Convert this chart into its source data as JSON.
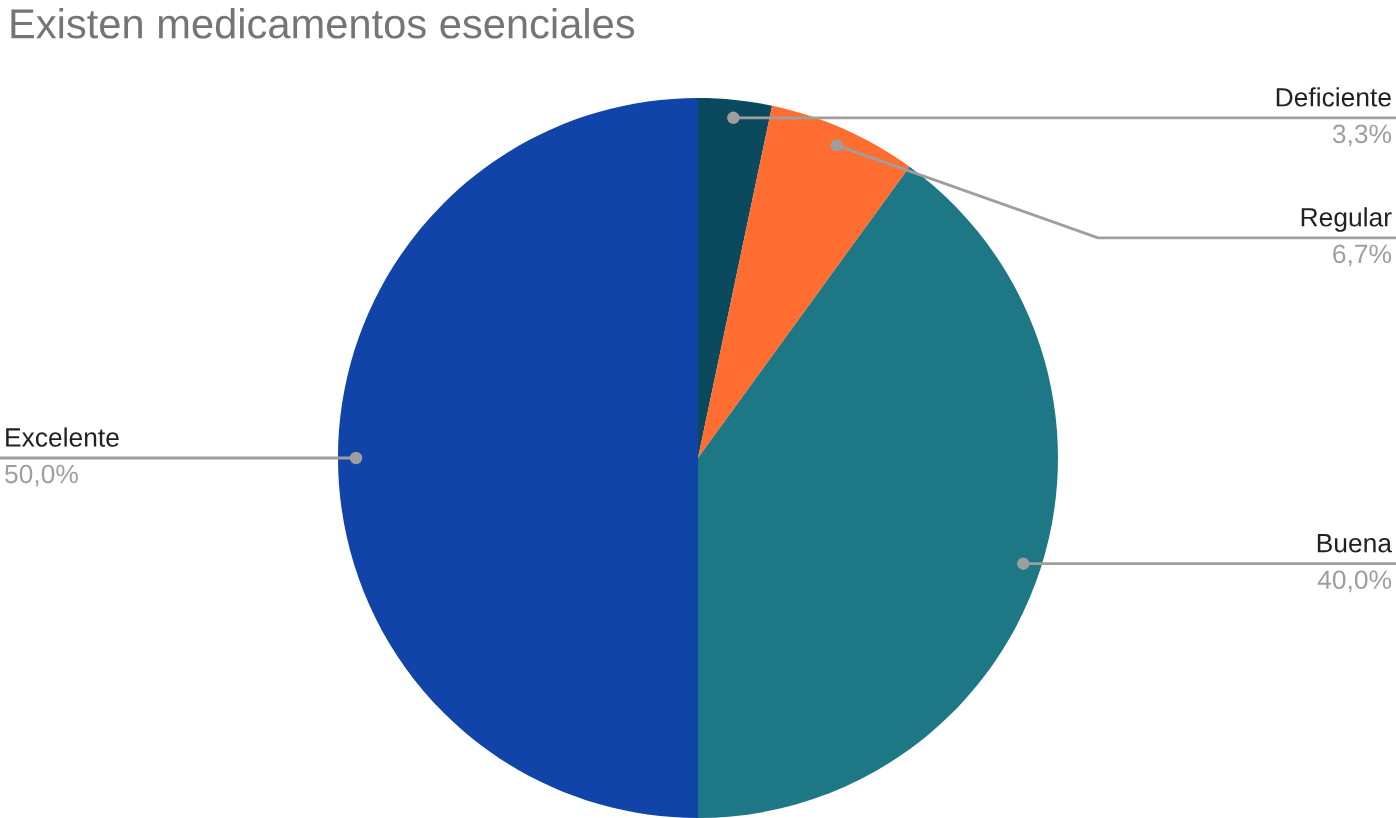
{
  "chart_data": {
    "type": "pie",
    "title": "Existen medicamentos esenciales",
    "categories": [
      "Deficiente",
      "Regular",
      "Buena",
      "Excelente"
    ],
    "values": [
      3.3,
      6.7,
      40.0,
      50.0
    ],
    "colors": [
      "#0b4a5e",
      "#ff6d31",
      "#1e7785",
      "#1044a8"
    ],
    "value_labels": [
      "3,3%",
      "6,7%",
      "40,0%",
      "50,0%"
    ]
  }
}
